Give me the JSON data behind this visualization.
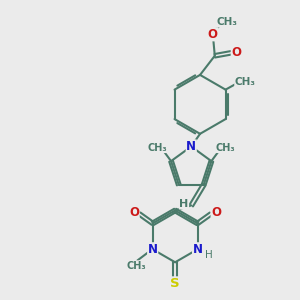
{
  "bg_color": "#ebebeb",
  "bond_color": "#4a7a6a",
  "bond_width": 1.5,
  "atom_colors": {
    "N": "#1a1acc",
    "O": "#cc1a1a",
    "S": "#cccc00",
    "C": "#4a7a6a"
  },
  "figsize": [
    3.0,
    3.0
  ],
  "dpi": 100,
  "xlim": [
    0,
    10
  ],
  "ylim": [
    0,
    10
  ]
}
